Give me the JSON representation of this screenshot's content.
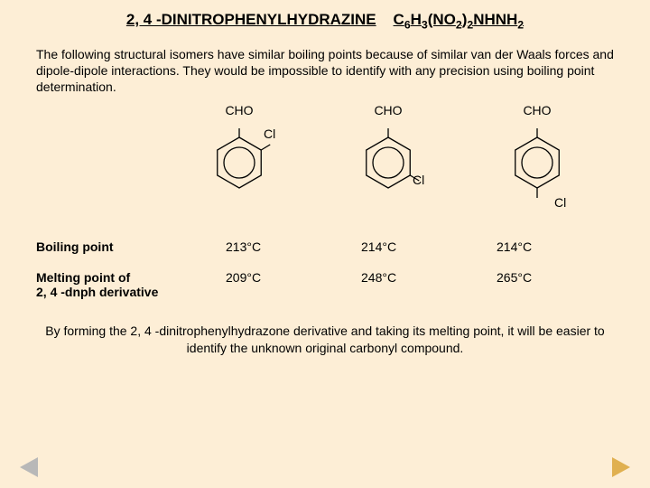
{
  "title": {
    "compound": "2, 4 -DINITROPHENYLHYDRAZINE",
    "formula_parts": [
      "C",
      "6",
      "H",
      "3",
      "(NO",
      "2",
      ")",
      "2",
      "NHNH",
      "2"
    ]
  },
  "intro": "The following structural isomers have similar boiling points because of similar van der Waals forces and dipole-dipole interactions. They would be impossible to identify with any precision using boiling point determination.",
  "molecules": [
    {
      "top_label": "CHO",
      "cl_pos": "ortho"
    },
    {
      "top_label": "CHO",
      "cl_pos": "meta"
    },
    {
      "top_label": "CHO",
      "cl_pos": "para"
    }
  ],
  "cl_label": "Cl",
  "rows": {
    "bp_label": "Boiling point",
    "mp_label_line1": "Melting point of",
    "mp_label_line2": "2, 4 -dnph derivative",
    "bp": [
      "213°C",
      "214°C",
      "214°C"
    ],
    "mp": [
      "209°C",
      "248°C",
      "265°C"
    ]
  },
  "outro": "By forming the 2, 4 -dinitrophenylhydrazone derivative and taking its melting point, it will be easier to identify the unknown original carbonyl compound.",
  "colors": {
    "background": "#fdeed6",
    "ring_stroke": "#000000",
    "nav_prev": "#b8b8b8",
    "nav_next": "#e0b050"
  },
  "benzene": {
    "hex_radius": 28,
    "inner_circle_radius": 17,
    "stroke_width": 1.3,
    "top_bond_length": 10
  }
}
